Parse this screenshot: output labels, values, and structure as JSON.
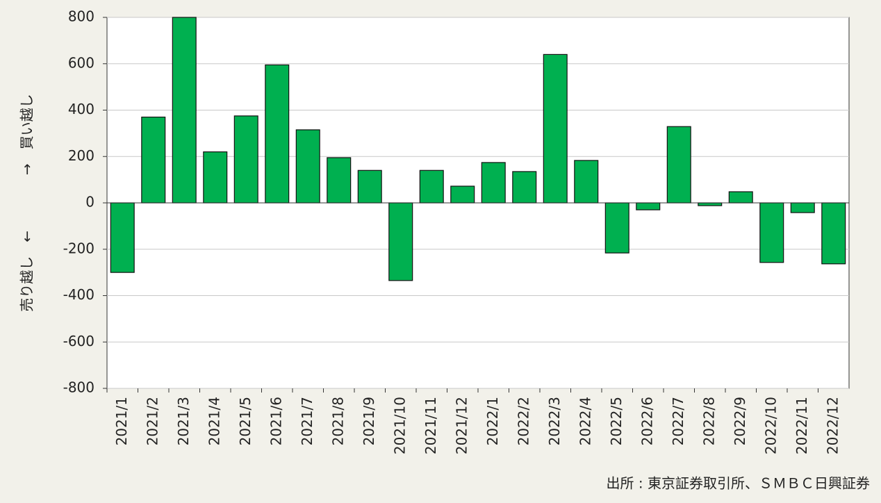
{
  "chart_data": {
    "type": "bar",
    "y_label": "売り越し　←　　　　→　買い越し",
    "source": "出所 : 東京証券取引所、ＳＭＢＣ日興証券",
    "categories": [
      "2021/1",
      "2021/2",
      "2021/3",
      "2021/4",
      "2021/5",
      "2021/6",
      "2021/7",
      "2021/8",
      "2021/9",
      "2021/10",
      "2021/11",
      "2021/12",
      "2022/1",
      "2022/2",
      "2022/3",
      "2022/4",
      "2022/5",
      "2022/6",
      "2022/7",
      "2022/8",
      "2022/9",
      "2022/10",
      "2022/11",
      "2022/12"
    ],
    "values": [
      -300,
      370,
      800,
      220,
      375,
      595,
      315,
      195,
      140,
      -335,
      140,
      72,
      174,
      135,
      640,
      183,
      -216,
      -30,
      329,
      -12,
      48,
      -257,
      -42,
      -263
    ],
    "color": "#00b050",
    "ylim": [
      -800,
      800
    ],
    "yticks": [
      -800,
      -600,
      -400,
      -200,
      0,
      200,
      400,
      600,
      800
    ],
    "grid": true
  }
}
